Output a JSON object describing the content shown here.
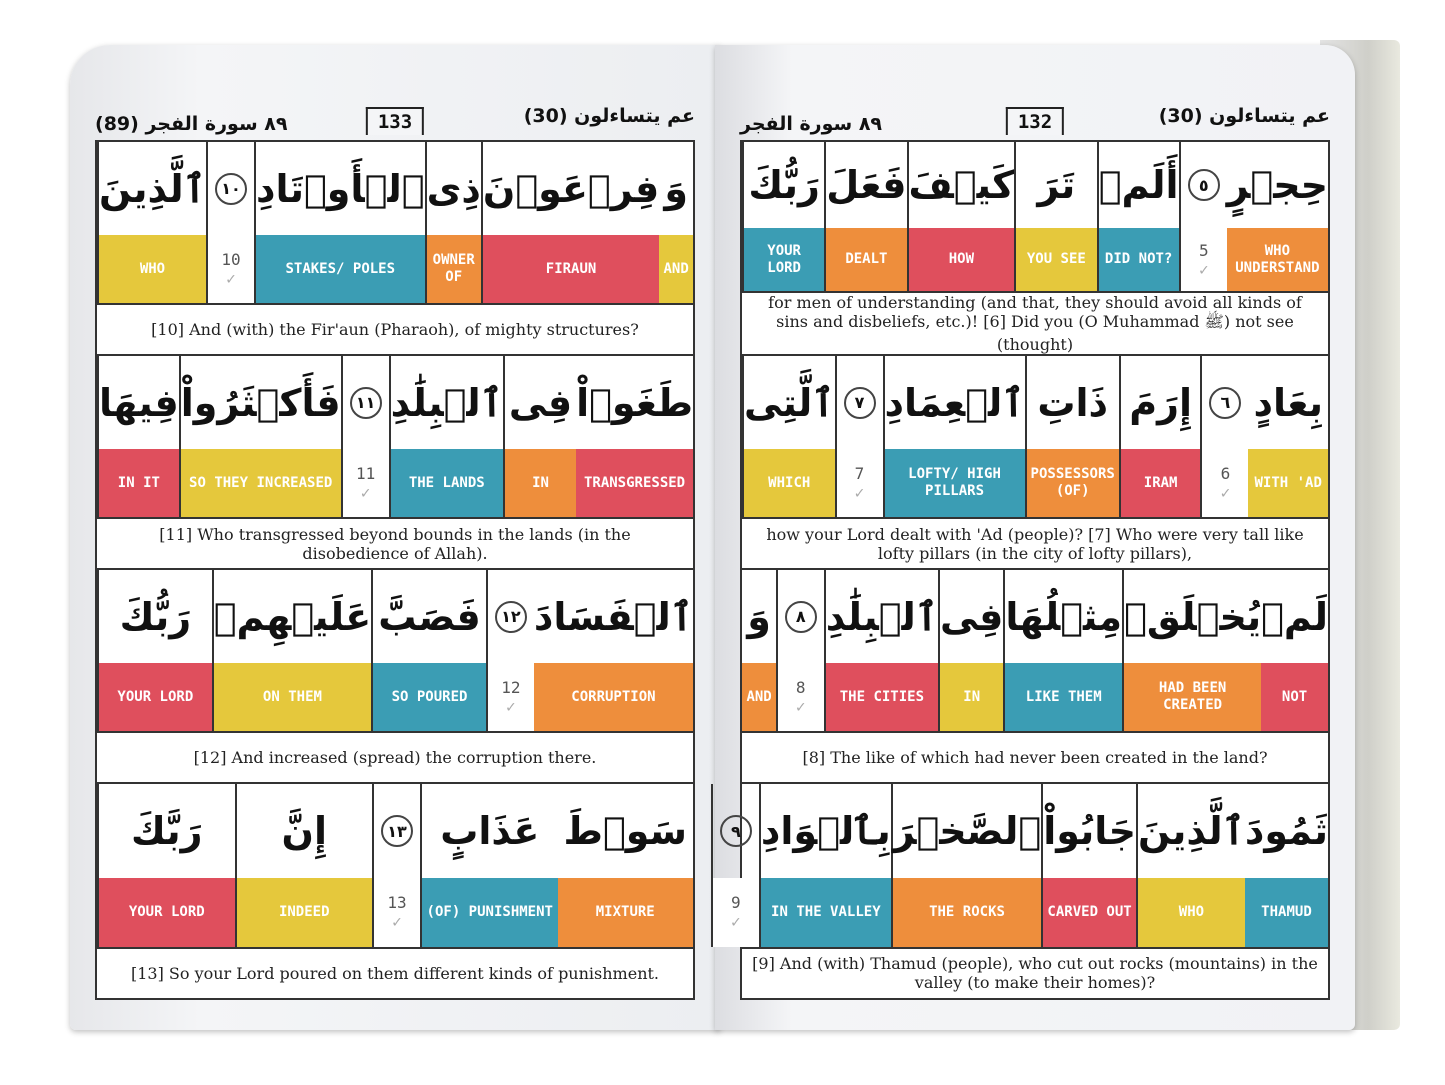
{
  "colors": {
    "yellow": "#e5c83c",
    "red": "#df4f5d",
    "orange": "#ee8e3c",
    "blue": "#3b9db4"
  },
  "pages": [
    {
      "id": "left",
      "header": {
        "surah": "٨٩ سورة الفجر (89)",
        "page_number": "133",
        "juz": "عم يتساءلون (30)"
      },
      "rows": [
        {
          "cells": [
            {
              "ar": "وَ",
              "en": "AND",
              "color": "yellow"
            },
            {
              "ar": "فِرۡعَوۡنَ",
              "en": "FIRAUN",
              "color": "red"
            },
            {
              "ar": "ذِى",
              "en": "OWNER OF",
              "color": "orange"
            },
            {
              "ar": "ٱلۡأَوۡتَادِ",
              "en": "STAKES/ POLES",
              "color": "blue"
            },
            {
              "marker": "١٠",
              "num": "10"
            },
            {
              "ar": "ٱلَّذِينَ",
              "en": "WHO",
              "color": "yellow"
            }
          ],
          "translation": "[10] And (with) the Fir'aun (Pharaoh), of mighty structures?"
        },
        {
          "cells": [
            {
              "ar": "طَغَوۡاْ",
              "en": "TRANSGRESSED",
              "color": "red"
            },
            {
              "ar": "فِى",
              "en": "IN",
              "color": "orange"
            },
            {
              "ar": "ٱلۡبِلَٰدِ",
              "en": "THE LANDS",
              "color": "blue"
            },
            {
              "marker": "١١",
              "num": "11"
            },
            {
              "ar": "فَأَكۡثَرُواْ",
              "en": "SO THEY INCREASED",
              "color": "yellow"
            },
            {
              "ar": "فِيهَا",
              "en": "IN IT",
              "color": "red"
            }
          ],
          "translation": "[11] Who transgressed beyond bounds in the lands (in the disobedience of Allah)."
        },
        {
          "cells": [
            {
              "ar": "ٱلۡفَسَادَ",
              "en": "CORRUPTION",
              "color": "orange"
            },
            {
              "marker": "١٢",
              "num": "12"
            },
            {
              "ar": "فَصَبَّ",
              "en": "SO POURED",
              "color": "blue"
            },
            {
              "ar": "عَلَيۡهِمۡ",
              "en": "ON THEM",
              "color": "yellow"
            },
            {
              "ar": "رَبُّكَ",
              "en": "YOUR LORD",
              "color": "red"
            }
          ],
          "translation": "[12] And increased (spread) the corruption there."
        },
        {
          "cells": [
            {
              "ar": "سَوۡطَ",
              "en": "MIXTURE",
              "color": "orange"
            },
            {
              "ar": "عَذَابٍ",
              "en": "(OF) PUNISHMENT",
              "color": "blue"
            },
            {
              "marker": "١٣",
              "num": "13"
            },
            {
              "ar": "إِنَّ",
              "en": "INDEED",
              "color": "yellow"
            },
            {
              "ar": "رَبَّكَ",
              "en": "YOUR LORD",
              "color": "red"
            }
          ],
          "translation": "[13] So your Lord poured on them different kinds of punishment."
        }
      ]
    },
    {
      "id": "right",
      "header": {
        "surah": "٨٩ سورة الفجر",
        "page_number": "132",
        "juz": "عم يتساءلون (30)"
      },
      "rows": [
        {
          "cells": [
            {
              "ar": "حِجۡرٍ",
              "en": "WHO UNDERSTAND",
              "color": "orange"
            },
            {
              "marker": "٥",
              "num": "5"
            },
            {
              "ar": "أَلَمۡ",
              "en": "DID NOT?",
              "color": "blue"
            },
            {
              "ar": "تَرَ",
              "en": "YOU SEE",
              "color": "yellow"
            },
            {
              "ar": "كَيۡفَ",
              "en": "HOW",
              "color": "red"
            },
            {
              "ar": "فَعَلَ",
              "en": "DEALT",
              "color": "orange"
            },
            {
              "ar": "رَبُّكَ",
              "en": "YOUR LORD",
              "color": "blue"
            }
          ],
          "translation": "for men of understanding (and that, they should avoid all kinds of sins and disbeliefs, etc.)! [6] Did you (O Muhammad ﷺ) not see (thought)"
        },
        {
          "cells": [
            {
              "ar": "بِعَادٍ",
              "en": "WITH 'AD",
              "color": "yellow"
            },
            {
              "marker": "٦",
              "num": "6"
            },
            {
              "ar": "إِرَمَ",
              "en": "IRAM",
              "color": "red"
            },
            {
              "ar": "ذَاتِ",
              "en": "POSSESSORS (OF)",
              "color": "orange"
            },
            {
              "ar": "ٱلۡعِمَادِ",
              "en": "LOFTY/ HIGH PILLARS",
              "color": "blue"
            },
            {
              "marker": "٧",
              "num": "7"
            },
            {
              "ar": "ٱلَّتِى",
              "en": "WHICH",
              "color": "yellow"
            }
          ],
          "translation": "how your Lord dealt with 'Ad (people)? [7] Who were very tall like lofty pillars (in the city of lofty pillars),"
        },
        {
          "cells": [
            {
              "ar": "لَمۡ",
              "en": "NOT",
              "color": "red"
            },
            {
              "ar": "يُخۡلَقۡ",
              "en": "HAD BEEN CREATED",
              "color": "orange"
            },
            {
              "ar": "مِثۡلُهَا",
              "en": "LIKE THEM",
              "color": "blue"
            },
            {
              "ar": "فِى",
              "en": "IN",
              "color": "yellow"
            },
            {
              "ar": "ٱلۡبِلَٰدِ",
              "en": "THE CITIES",
              "color": "red"
            },
            {
              "marker": "٨",
              "num": "8"
            },
            {
              "ar": "وَ",
              "en": "AND",
              "color": "orange"
            }
          ],
          "translation": "[8] The like of which had never been created in the land?"
        },
        {
          "cells": [
            {
              "ar": "ثَمُودَ",
              "en": "THAMUD",
              "color": "blue"
            },
            {
              "ar": "ٱلَّذِينَ",
              "en": "WHO",
              "color": "yellow"
            },
            {
              "ar": "جَابُواْ",
              "en": "CARVED OUT",
              "color": "red"
            },
            {
              "ar": "ٱلصَّخۡرَ",
              "en": "THE ROCKS",
              "color": "orange"
            },
            {
              "ar": "بِٱلۡوَادِ",
              "en": "IN THE VALLEY",
              "color": "blue"
            },
            {
              "marker": "٩",
              "num": "9"
            }
          ],
          "translation": "[9] And (with) Thamud (people), who cut out rocks (mountains) in the valley (to make their homes)?"
        }
      ]
    }
  ]
}
